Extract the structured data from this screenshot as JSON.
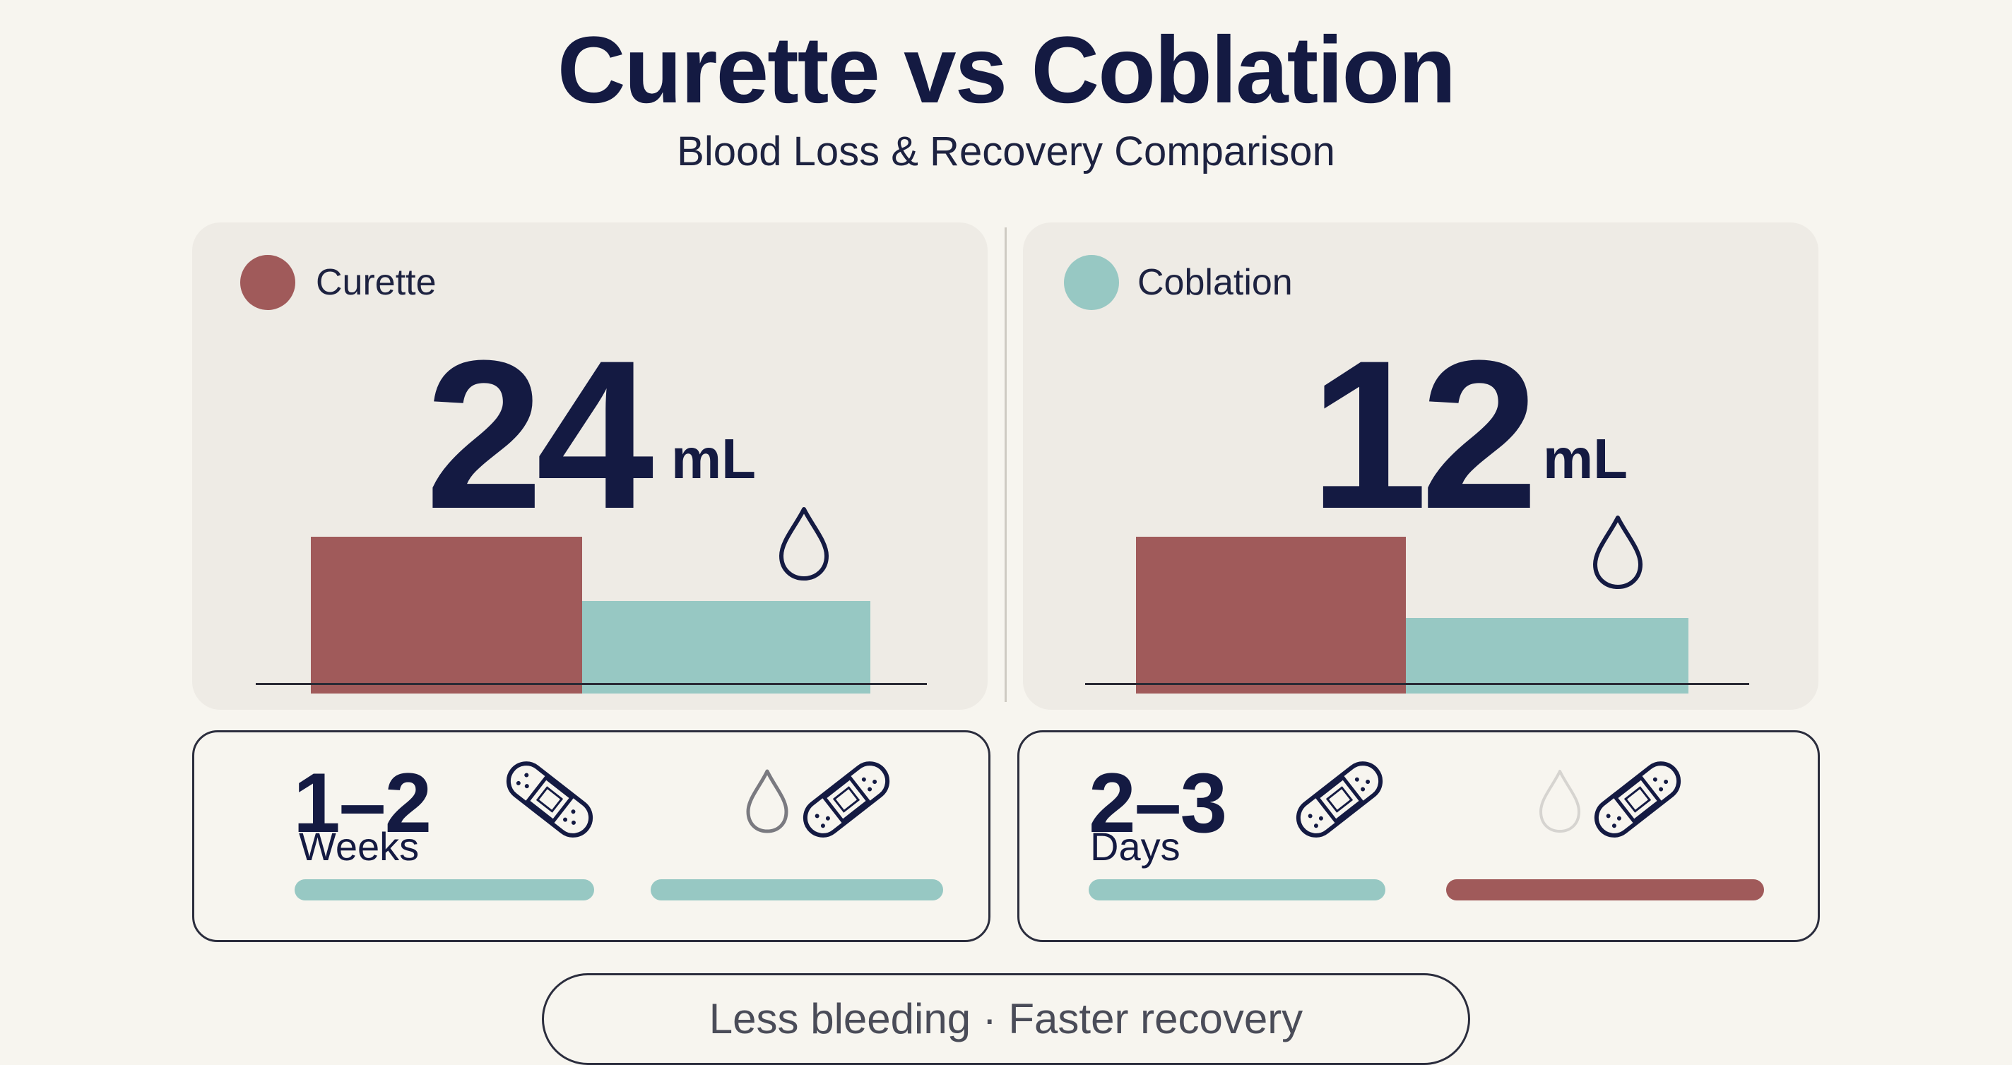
{
  "header": {
    "title": "Curette vs Coblation",
    "subtitle": "Blood Loss & Recovery Comparison"
  },
  "colors": {
    "curette": "#a05a5a",
    "coblation": "#97c8c3",
    "ink": "#141a42",
    "panel_bg": "#eeebe5",
    "page_bg": "#f7f5ef"
  },
  "panels": [
    {
      "legend_label": "Curette",
      "legend_color": "curette",
      "value": "24",
      "unit": "mL",
      "icon": "droplet-icon"
    },
    {
      "legend_label": "Coblation",
      "legend_color": "coblation",
      "value": "12",
      "unit": "mL",
      "icon": "droplet-icon"
    }
  ],
  "recovery": [
    {
      "number": "1–2",
      "unit": "Weeks",
      "icons": [
        "bandage-icon",
        "droplet-icon",
        "bandage-icon"
      ],
      "bars": [
        "coblation",
        "coblation"
      ]
    },
    {
      "number": "2–3",
      "unit": "Days",
      "icons": [
        "bandage-icon",
        "droplet-icon",
        "bandage-icon"
      ],
      "bars": [
        "coblation",
        "curette"
      ]
    }
  ],
  "footer": {
    "text": "Less bleeding · Faster recovery"
  }
}
